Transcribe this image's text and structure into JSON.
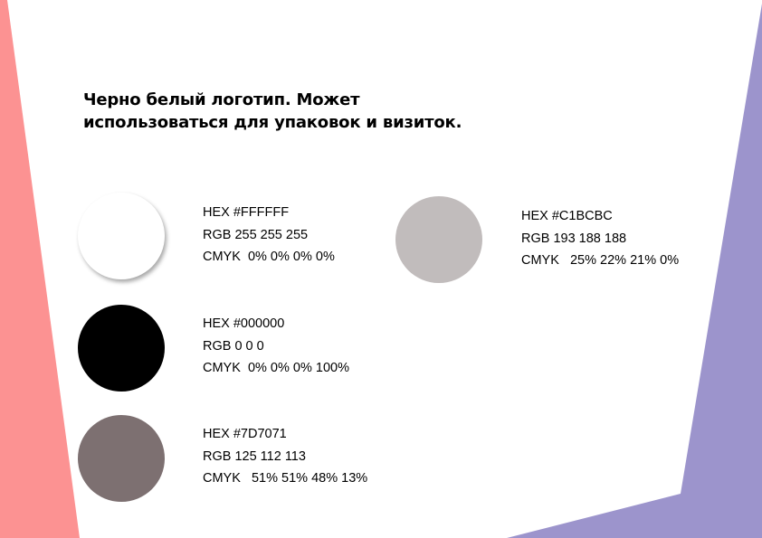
{
  "page": {
    "title_lines": [
      "Черно белый логотип. Может",
      "использоваться для упаковок и визиток."
    ]
  },
  "decoration": {
    "left_color": "#FC9292",
    "right_color": "#9C94CC"
  },
  "swatches": [
    {
      "id": "white",
      "color": "#FFFFFF",
      "hex": "HEX #FFFFFF",
      "rgb": "RGB 255 255 255",
      "cmyk": "CMYK  0% 0% 0% 0%"
    },
    {
      "id": "gray",
      "color": "#C1BCBC",
      "hex": "HEX #C1BCBC",
      "rgb": "RGB 193 188 188",
      "cmyk": "CMYK   25% 22% 21% 0%"
    },
    {
      "id": "black",
      "color": "#000000",
      "hex": "HEX #000000",
      "rgb": "RGB 0 0 0",
      "cmyk": "CMYK  0% 0% 0% 100%"
    },
    {
      "id": "taupe",
      "color": "#7D7071",
      "hex": "HEX #7D7071",
      "rgb": "RGB 125 112 113",
      "cmyk": "CMYK   51% 51% 48% 13%"
    }
  ]
}
